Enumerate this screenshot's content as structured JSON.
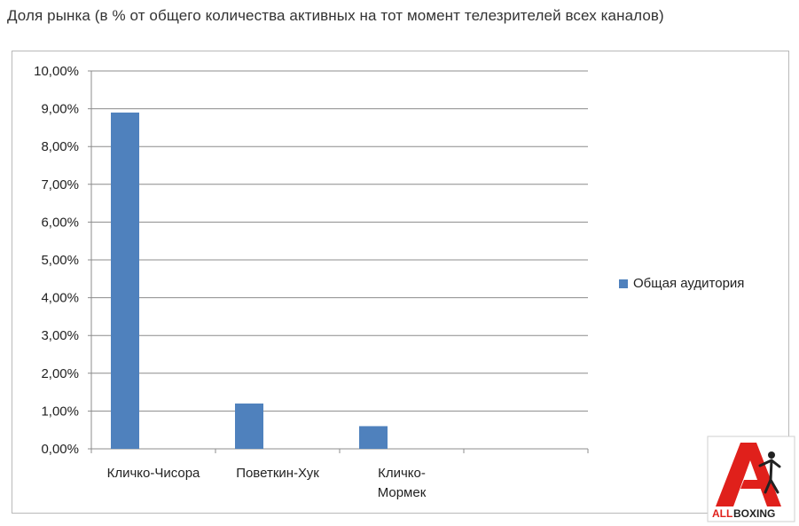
{
  "chart_title": "Доля рынка (в %  от общего количества активных на тот момент телезрителей всех каналов)",
  "chart_data": {
    "type": "bar",
    "title": "Доля рынка (в %  от общего количества активных на тот момент телезрителей всех каналов)",
    "categories": [
      [
        "Кличко-Чисора"
      ],
      [
        "Поветкин-Хук"
      ],
      [
        "Кличко-",
        "Мормек"
      ],
      [
        ""
      ]
    ],
    "series": [
      {
        "name": "Общая аудитория",
        "values": [
          8.9,
          1.2,
          0.6,
          null
        ],
        "color": "#4f81bd"
      }
    ],
    "yticks": [
      "0,00%",
      "1,00%",
      "2,00%",
      "3,00%",
      "4,00%",
      "5,00%",
      "6,00%",
      "7,00%",
      "8,00%",
      "9,00%",
      "10,00%"
    ],
    "ylim": [
      0,
      10
    ],
    "grid": true,
    "legend_position": "right"
  },
  "logo": {
    "text_all": "ALL",
    "text_boxing": "BOXING",
    "color_red": "#e0201b",
    "color_dark": "#222222",
    "icon": "allboxing-logo"
  }
}
